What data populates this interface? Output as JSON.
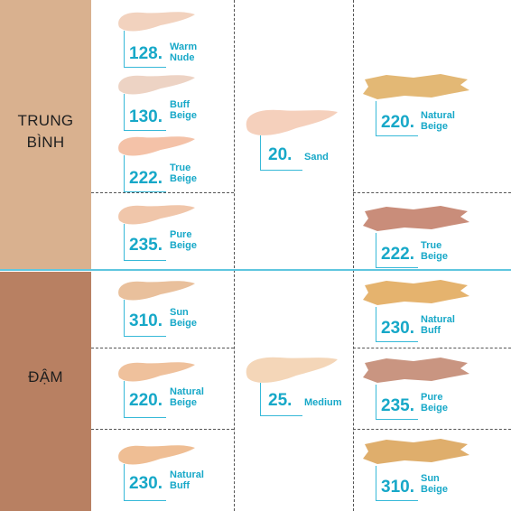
{
  "groups": [
    {
      "label_line1": "TRUNG",
      "label_line2": "BÌNH",
      "color": "#d9b18f"
    },
    {
      "label_line1": "ĐẬM",
      "label_line2": "",
      "color": "#b88062"
    }
  ],
  "shades": [
    {
      "num": "128",
      "name1": "Warm",
      "name2": "Nude",
      "color": "#f2d2be"
    },
    {
      "num": "130",
      "name1": "Buff",
      "name2": "Beige",
      "color": "#edd3c4"
    },
    {
      "num": "222",
      "name1": "True",
      "name2": "Beige",
      "color": "#f4c2a8"
    },
    {
      "num": "235",
      "name1": "Pure",
      "name2": "Beige",
      "color": "#f0c6aa"
    },
    {
      "num": "310",
      "name1": "Sun",
      "name2": "Beige",
      "color": "#e9c09c"
    },
    {
      "num": "220",
      "name1": "Natural",
      "name2": "Beige",
      "color": "#efc19c"
    },
    {
      "num": "230",
      "name1": "Natural",
      "name2": "Buff",
      "color": "#efbe94"
    },
    {
      "num": "20",
      "name1": "Sand",
      "name2": "",
      "color": "#f5d0bc"
    },
    {
      "num": "25",
      "name1": "Medium",
      "name2": "",
      "color": "#f4d6b8"
    },
    {
      "num": "220",
      "name1": "Natural",
      "name2": "Beige",
      "color": "#e3b875"
    },
    {
      "num": "222",
      "name1": "True",
      "name2": "Beige",
      "color": "#c98d7a"
    },
    {
      "num": "230",
      "name1": "Natural",
      "name2": "Buff",
      "color": "#e5b36e"
    },
    {
      "num": "235",
      "name1": "Pure",
      "name2": "Beige",
      "color": "#c99581"
    },
    {
      "num": "310",
      "name1": "Sun",
      "name2": "Beige",
      "color": "#dfae6c"
    }
  ]
}
